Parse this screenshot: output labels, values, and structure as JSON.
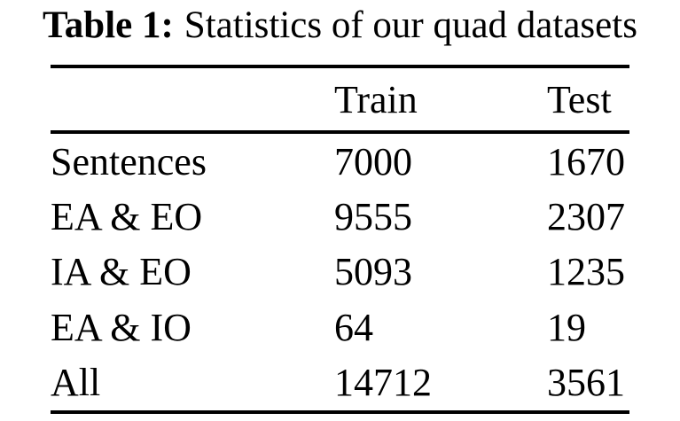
{
  "page": {
    "background": "#ffffff",
    "text_color": "#000000",
    "rule_color": "#000000"
  },
  "caption": {
    "label": "Table 1:",
    "title": "Statistics of our quad datasets"
  },
  "table": {
    "header": {
      "label": "",
      "train": "Train",
      "test": "Test"
    },
    "rows": [
      {
        "label": "Sentences",
        "train": "7000",
        "test": "1670"
      },
      {
        "label": "EA & EO",
        "train": "9555",
        "test": "2307"
      },
      {
        "label": "IA & EO",
        "train": "5093",
        "test": "1235"
      },
      {
        "label": "EA & IO",
        "train": "64",
        "test": "19"
      },
      {
        "label": "All",
        "train": "14712",
        "test": "3561"
      }
    ]
  },
  "chart_data": {
    "type": "table",
    "title": "Table 1: Statistics of our quad datasets",
    "columns": [
      "",
      "Train",
      "Test"
    ],
    "rows": [
      [
        "Sentences",
        7000,
        1670
      ],
      [
        "EA & EO",
        9555,
        2307
      ],
      [
        "IA & EO",
        5093,
        1235
      ],
      [
        "EA & IO",
        64,
        19
      ],
      [
        "All",
        14712,
        3561
      ]
    ]
  }
}
